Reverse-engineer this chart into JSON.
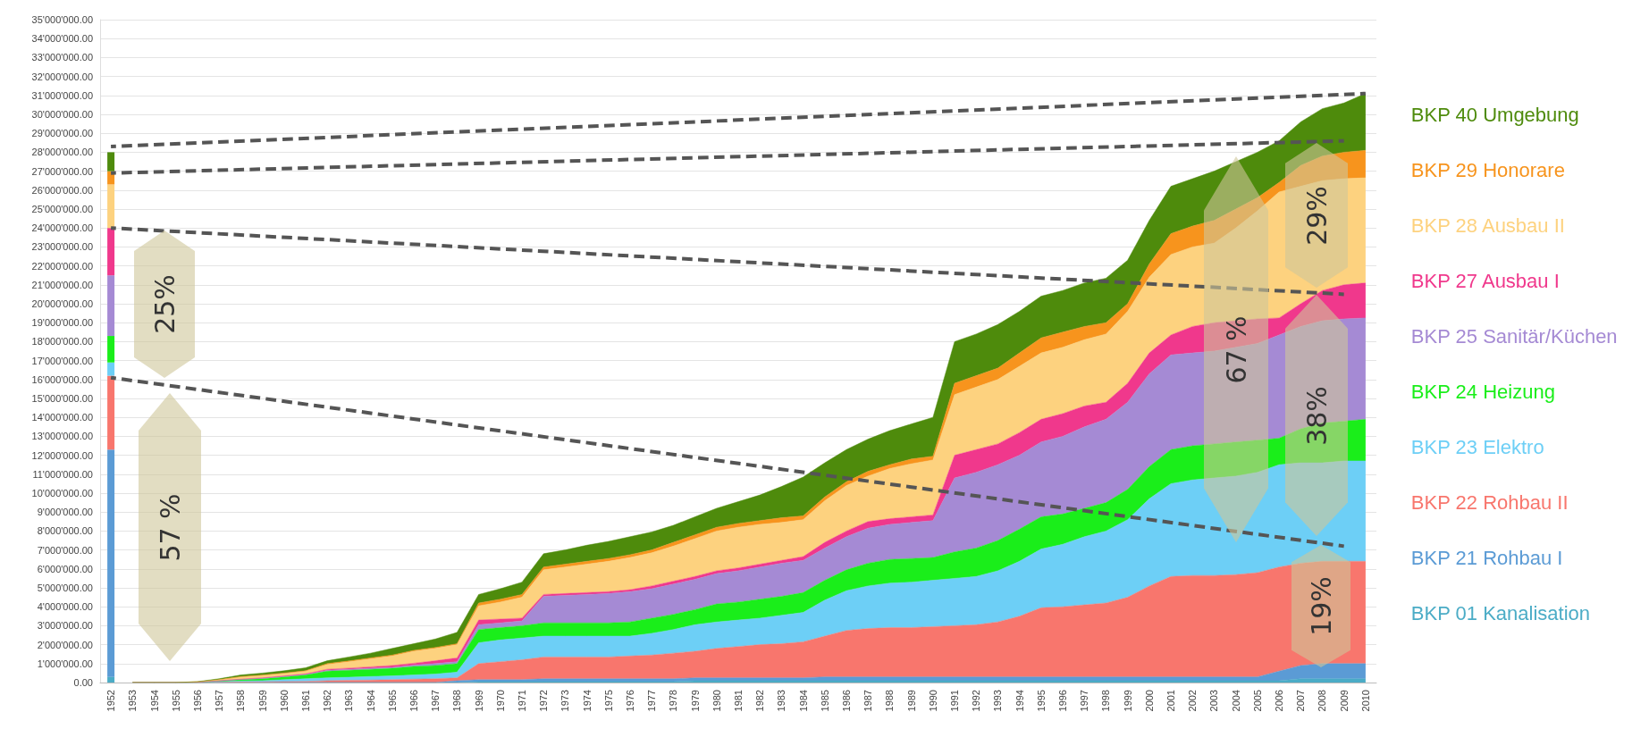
{
  "chart_data": {
    "type": "area",
    "stacked": true,
    "grid": "y",
    "legend": "right",
    "marker": "none",
    "categories": [
      "1952",
      "1953",
      "1954",
      "1955",
      "1956",
      "1957",
      "1958",
      "1959",
      "1960",
      "1961",
      "1962",
      "1963",
      "1964",
      "1965",
      "1966",
      "1967",
      "1968",
      "1969",
      "1970",
      "1971",
      "1972",
      "1973",
      "1974",
      "1975",
      "1976",
      "1977",
      "1978",
      "1979",
      "1980",
      "1981",
      "1982",
      "1983",
      "1984",
      "1985",
      "1986",
      "1987",
      "1988",
      "1989",
      "1990",
      "1991",
      "1992",
      "1993",
      "1994",
      "1995",
      "1996",
      "1997",
      "1998",
      "1999",
      "2000",
      "2001",
      "2002",
      "2003",
      "2004",
      "2005",
      "2006",
      "2007",
      "2008",
      "2009",
      "2010"
    ],
    "ylim": [
      0,
      35000000
    ],
    "yticks": [
      {
        "value": 0,
        "label": "0.00"
      },
      {
        "value": 1000000,
        "label": "1'000'000.00"
      },
      {
        "value": 2000000,
        "label": "2'000'000.00"
      },
      {
        "value": 3000000,
        "label": "3'000'000.00"
      },
      {
        "value": 4000000,
        "label": "4'000'000.00"
      },
      {
        "value": 5000000,
        "label": "5'000'000.00"
      },
      {
        "value": 6000000,
        "label": "6'000'000.00"
      },
      {
        "value": 7000000,
        "label": "7'000'000.00"
      },
      {
        "value": 8000000,
        "label": "8'000'000.00"
      },
      {
        "value": 9000000,
        "label": "9'000'000.00"
      },
      {
        "value": 10000000,
        "label": "10'000'000.00"
      },
      {
        "value": 11000000,
        "label": "11'000'000.00"
      },
      {
        "value": 12000000,
        "label": "12'000'000.00"
      },
      {
        "value": 13000000,
        "label": "13'000'000.00"
      },
      {
        "value": 14000000,
        "label": "14'000'000.00"
      },
      {
        "value": 15000000,
        "label": "15'000'000.00"
      },
      {
        "value": 16000000,
        "label": "16'000'000.00"
      },
      {
        "value": 17000000,
        "label": "17'000'000.00"
      },
      {
        "value": 18000000,
        "label": "18'000'000.00"
      },
      {
        "value": 19000000,
        "label": "19'000'000.00"
      },
      {
        "value": 20000000,
        "label": "20'000'000.00"
      },
      {
        "value": 21000000,
        "label": "21'000'000.00"
      },
      {
        "value": 22000000,
        "label": "22'000'000.00"
      },
      {
        "value": 23000000,
        "label": "23'000'000.00"
      },
      {
        "value": 24000000,
        "label": "24'000'000.00"
      },
      {
        "value": 25000000,
        "label": "25'000'000.00"
      },
      {
        "value": 26000000,
        "label": "26'000'000.00"
      },
      {
        "value": 27000000,
        "label": "27'000'000.00"
      },
      {
        "value": 28000000,
        "label": "28'000'000.00"
      },
      {
        "value": 29000000,
        "label": "29'000'000.00"
      },
      {
        "value": 30000000,
        "label": "30'000'000.00"
      },
      {
        "value": 31000000,
        "label": "31'000'000.00"
      },
      {
        "value": 32000000,
        "label": "32'000'000.00"
      },
      {
        "value": 33000000,
        "label": "33'000'000.00"
      },
      {
        "value": 34000000,
        "label": "34'000'000.00"
      },
      {
        "value": 35000000,
        "label": "35'000'000.00"
      }
    ],
    "series": [
      {
        "name": "BKP 01 Kanalisation",
        "color": "#4bacc6",
        "values": [
          null,
          0,
          0,
          0,
          0,
          0,
          0,
          0,
          0,
          0,
          0,
          0,
          0,
          0,
          0,
          0,
          0,
          50000,
          50000,
          50000,
          50000,
          50000,
          50000,
          50000,
          50000,
          50000,
          50000,
          100000,
          100000,
          100000,
          100000,
          100000,
          100000,
          100000,
          100000,
          100000,
          100000,
          100000,
          100000,
          100000,
          100000,
          100000,
          100000,
          100000,
          100000,
          100000,
          100000,
          100000,
          100000,
          100000,
          100000,
          100000,
          100000,
          100000,
          100000,
          200000,
          200000,
          200000,
          200000
        ]
      },
      {
        "name": "BKP 21 Rohbau I",
        "color": "#5b9bd5",
        "values": [
          null,
          0,
          0,
          0,
          0,
          0,
          0,
          0,
          0,
          0,
          0,
          0,
          0,
          0,
          0,
          0,
          100000,
          100000,
          100000,
          100000,
          150000,
          150000,
          150000,
          150000,
          150000,
          150000,
          150000,
          150000,
          150000,
          150000,
          150000,
          150000,
          150000,
          200000,
          200000,
          200000,
          200000,
          200000,
          200000,
          200000,
          200000,
          200000,
          200000,
          200000,
          200000,
          200000,
          200000,
          200000,
          200000,
          200000,
          200000,
          200000,
          200000,
          200000,
          500000,
          700000,
          800000,
          800000,
          800000
        ]
      },
      {
        "name": "BKP 22 Rohbau II",
        "color": "#f8766d",
        "values": [
          null,
          0,
          0,
          0,
          0,
          20000,
          30000,
          40000,
          50000,
          60000,
          100000,
          120000,
          130000,
          150000,
          180000,
          200000,
          150000,
          850000,
          950000,
          1050000,
          1150000,
          1150000,
          1150000,
          1150000,
          1200000,
          1250000,
          1350000,
          1400000,
          1550000,
          1650000,
          1750000,
          1800000,
          1900000,
          2150000,
          2450000,
          2550000,
          2600000,
          2600000,
          2650000,
          2700000,
          2750000,
          2900000,
          3200000,
          3650000,
          3700000,
          3800000,
          3900000,
          4200000,
          4800000,
          5300000,
          5350000,
          5350000,
          5400000,
          5500000,
          5500000,
          5400000,
          5400000,
          5400000,
          5400000
        ]
      },
      {
        "name": "BKP 23 Elektro",
        "color": "#6dcff6",
        "values": [
          null,
          0,
          0,
          0,
          0,
          30000,
          50000,
          60000,
          100000,
          140000,
          150000,
          160000,
          190000,
          200000,
          220000,
          250000,
          300000,
          1100000,
          1150000,
          1150000,
          1100000,
          1100000,
          1100000,
          1100000,
          1050000,
          1150000,
          1250000,
          1400000,
          1400000,
          1400000,
          1400000,
          1500000,
          1550000,
          1900000,
          2100000,
          2250000,
          2350000,
          2400000,
          2450000,
          2500000,
          2550000,
          2700000,
          2900000,
          3100000,
          3300000,
          3600000,
          3800000,
          4100000,
          4600000,
          4900000,
          5050000,
          5150000,
          5200000,
          5300000,
          5400000,
          5300000,
          5200000,
          5300000,
          5300000
        ]
      },
      {
        "name": "BKP 24 Heizung",
        "color": "#1aee1a",
        "values": [
          null,
          0,
          0,
          0,
          20000,
          30000,
          70000,
          100000,
          150000,
          200000,
          350000,
          370000,
          380000,
          400000,
          450000,
          450000,
          450000,
          700000,
          650000,
          650000,
          700000,
          700000,
          700000,
          700000,
          750000,
          800000,
          800000,
          800000,
          950000,
          950000,
          1000000,
          1000000,
          1050000,
          1050000,
          1100000,
          1200000,
          1250000,
          1250000,
          1200000,
          1400000,
          1500000,
          1600000,
          1700000,
          1700000,
          1600000,
          1500000,
          1500000,
          1600000,
          1700000,
          1800000,
          1800000,
          1800000,
          1800000,
          1700000,
          1400000,
          1800000,
          2100000,
          2100000,
          2200000
        ]
      },
      {
        "name": "BKP 25 Sanitär/Küchen",
        "color": "#a58ad4",
        "values": [
          null,
          0,
          0,
          0,
          0,
          0,
          10000,
          20000,
          20000,
          30000,
          50000,
          50000,
          50000,
          50000,
          70000,
          100000,
          100000,
          250000,
          250000,
          250000,
          1400000,
          1450000,
          1500000,
          1550000,
          1600000,
          1550000,
          1600000,
          1600000,
          1600000,
          1650000,
          1700000,
          1750000,
          1700000,
          1700000,
          1750000,
          1850000,
          1850000,
          1900000,
          1950000,
          3900000,
          4000000,
          4000000,
          3900000,
          3950000,
          4100000,
          4300000,
          4400000,
          4600000,
          4900000,
          5000000,
          4900000,
          4900000,
          5000000,
          5100000,
          5450000,
          5400000,
          5400000,
          5400000,
          5350000
        ]
      },
      {
        "name": "BKP 27 Ausbau I",
        "color": "#f0388c",
        "values": [
          null,
          0,
          0,
          0,
          0,
          20000,
          20000,
          30000,
          30000,
          30000,
          50000,
          60000,
          80000,
          100000,
          100000,
          150000,
          200000,
          250000,
          200000,
          150000,
          100000,
          100000,
          100000,
          100000,
          100000,
          150000,
          150000,
          150000,
          150000,
          150000,
          150000,
          150000,
          200000,
          300000,
          300000,
          350000,
          300000,
          300000,
          300000,
          1200000,
          1200000,
          1100000,
          1200000,
          1200000,
          1200000,
          1100000,
          900000,
          1000000,
          1100000,
          1050000,
          1400000,
          1500000,
          1400000,
          1300000,
          900000,
          1200000,
          1600000,
          1800000,
          1850000
        ]
      },
      {
        "name": "BKP 28 Ausbau II",
        "color": "#fdd27f",
        "values": [
          null,
          0,
          0,
          0,
          20000,
          50000,
          120000,
          130000,
          130000,
          140000,
          250000,
          340000,
          420000,
          500000,
          630000,
          650000,
          700000,
          750000,
          900000,
          1100000,
          1300000,
          1400000,
          1500000,
          1600000,
          1700000,
          1750000,
          1850000,
          2000000,
          2100000,
          2150000,
          2100000,
          2000000,
          1950000,
          2200000,
          2400000,
          2400000,
          2650000,
          2800000,
          2900000,
          3200000,
          3300000,
          3400000,
          3500000,
          3500000,
          3500000,
          3500000,
          3600000,
          3800000,
          4000000,
          4250000,
          4200000,
          4200000,
          4900000,
          5700000,
          6650000,
          6200000,
          5800000,
          5600000,
          5550000
        ]
      },
      {
        "name": "BKP 29 Honorare",
        "color": "#f7941d",
        "values": [
          null,
          0,
          0,
          0,
          0,
          0,
          10000,
          10000,
          20000,
          20000,
          50000,
          40000,
          50000,
          50000,
          50000,
          50000,
          50000,
          150000,
          150000,
          150000,
          150000,
          150000,
          150000,
          150000,
          150000,
          150000,
          200000,
          200000,
          200000,
          200000,
          200000,
          250000,
          200000,
          200000,
          200000,
          250000,
          200000,
          250000,
          200000,
          600000,
          600000,
          600000,
          700000,
          800000,
          800000,
          700000,
          600000,
          400000,
          700000,
          1100000,
          1100000,
          1200000,
          1000000,
          700000,
          500000,
          1100000,
          1300000,
          1400000,
          1450000
        ]
      },
      {
        "name": "BKP 40 Umgebung",
        "color": "#4e8b0c",
        "values": [
          null,
          0,
          0,
          0,
          10000,
          50000,
          90000,
          110000,
          120000,
          160000,
          150000,
          210000,
          250000,
          350000,
          350000,
          450000,
          600000,
          450000,
          550000,
          650000,
          700000,
          750000,
          850000,
          900000,
          950000,
          950000,
          900000,
          950000,
          1000000,
          1150000,
          1350000,
          1650000,
          2050000,
          1800000,
          1700000,
          1700000,
          1800000,
          1850000,
          2050000,
          2200000,
          2200000,
          2300000,
          2200000,
          2200000,
          2200000,
          2300000,
          2350000,
          2300000,
          2300000,
          2500000,
          2500000,
          2600000,
          2500000,
          2400000,
          2200000,
          2300000,
          2500000,
          2600000,
          3000000
        ]
      },
      {
        "type": "bar",
        "color": "#4bacc6",
        "values": [
          300000,
          null,
          null,
          null,
          null,
          null,
          null,
          null,
          null,
          null,
          null,
          null,
          null,
          null,
          null,
          null,
          null,
          null,
          null,
          null,
          null,
          null,
          null,
          null,
          null,
          null,
          null,
          null,
          null,
          null,
          null,
          null,
          null,
          null,
          null,
          null,
          null,
          null,
          null,
          null,
          null,
          null,
          null,
          null,
          null,
          null,
          null,
          null,
          null,
          null,
          null,
          null,
          null,
          null,
          null,
          null,
          null,
          null,
          null
        ]
      },
      {
        "type": "bar",
        "color": "#5b9bd5",
        "values": [
          12000000,
          null,
          null,
          null,
          null,
          null,
          null,
          null,
          null,
          null,
          null,
          null,
          null,
          null,
          null,
          null,
          null,
          null,
          null,
          null,
          null,
          null,
          null,
          null,
          null,
          null,
          null,
          null,
          null,
          null,
          null,
          null,
          null,
          null,
          null,
          null,
          null,
          null,
          null,
          null,
          null,
          null,
          null,
          null,
          null,
          null,
          null,
          null,
          null,
          null,
          null,
          null,
          null,
          null,
          null,
          null,
          null,
          null,
          null
        ]
      },
      {
        "type": "bar",
        "color": "#f8766d",
        "values": [
          3900000,
          null,
          null,
          null,
          null,
          null,
          null,
          null,
          null,
          null,
          null,
          null,
          null,
          null,
          null,
          null,
          null,
          null,
          null,
          null,
          null,
          null,
          null,
          null,
          null,
          null,
          null,
          null,
          null,
          null,
          null,
          null,
          null,
          null,
          null,
          null,
          null,
          null,
          null,
          null,
          null,
          null,
          null,
          null,
          null,
          null,
          null,
          null,
          null,
          null,
          null,
          null,
          null,
          null,
          null,
          null,
          null,
          null,
          null
        ]
      },
      {
        "type": "bar",
        "color": "#6dcff6",
        "values": [
          700000,
          null,
          null,
          null,
          null,
          null,
          null,
          null,
          null,
          null,
          null,
          null,
          null,
          null,
          null,
          null,
          null,
          null,
          null,
          null,
          null,
          null,
          null,
          null,
          null,
          null,
          null,
          null,
          null,
          null,
          null,
          null,
          null,
          null,
          null,
          null,
          null,
          null,
          null,
          null,
          null,
          null,
          null,
          null,
          null,
          null,
          null,
          null,
          null,
          null,
          null,
          null,
          null,
          null,
          null,
          null,
          null,
          null,
          null
        ]
      },
      {
        "type": "bar",
        "color": "#1aee1a",
        "values": [
          1400000,
          null,
          null,
          null,
          null,
          null,
          null,
          null,
          null,
          null,
          null,
          null,
          null,
          null,
          null,
          null,
          null,
          null,
          null,
          null,
          null,
          null,
          null,
          null,
          null,
          null,
          null,
          null,
          null,
          null,
          null,
          null,
          null,
          null,
          null,
          null,
          null,
          null,
          null,
          null,
          null,
          null,
          null,
          null,
          null,
          null,
          null,
          null,
          null,
          null,
          null,
          null,
          null,
          null,
          null,
          null,
          null,
          null,
          null
        ]
      },
      {
        "type": "bar",
        "color": "#a58ad4",
        "values": [
          3200000,
          null,
          null,
          null,
          null,
          null,
          null,
          null,
          null,
          null,
          null,
          null,
          null,
          null,
          null,
          null,
          null,
          null,
          null,
          null,
          null,
          null,
          null,
          null,
          null,
          null,
          null,
          null,
          null,
          null,
          null,
          null,
          null,
          null,
          null,
          null,
          null,
          null,
          null,
          null,
          null,
          null,
          null,
          null,
          null,
          null,
          null,
          null,
          null,
          null,
          null,
          null,
          null,
          null,
          null,
          null,
          null,
          null,
          null
        ]
      },
      {
        "type": "bar",
        "color": "#f0388c",
        "values": [
          2500000,
          null,
          null,
          null,
          null,
          null,
          null,
          null,
          null,
          null,
          null,
          null,
          null,
          null,
          null,
          null,
          null,
          null,
          null,
          null,
          null,
          null,
          null,
          null,
          null,
          null,
          null,
          null,
          null,
          null,
          null,
          null,
          null,
          null,
          null,
          null,
          null,
          null,
          null,
          null,
          null,
          null,
          null,
          null,
          null,
          null,
          null,
          null,
          null,
          null,
          null,
          null,
          null,
          null,
          null,
          null,
          null,
          null,
          null
        ]
      },
      {
        "type": "bar",
        "color": "#fdd27f",
        "values": [
          2300000,
          null,
          null,
          null,
          null,
          null,
          null,
          null,
          null,
          null,
          null,
          null,
          null,
          null,
          null,
          null,
          null,
          null,
          null,
          null,
          null,
          null,
          null,
          null,
          null,
          null,
          null,
          null,
          null,
          null,
          null,
          null,
          null,
          null,
          null,
          null,
          null,
          null,
          null,
          null,
          null,
          null,
          null,
          null,
          null,
          null,
          null,
          null,
          null,
          null,
          null,
          null,
          null,
          null,
          null,
          null,
          null,
          null,
          null
        ]
      },
      {
        "type": "bar",
        "color": "#f7941d",
        "values": [
          700000,
          null,
          null,
          null,
          null,
          null,
          null,
          null,
          null,
          null,
          null,
          null,
          null,
          null,
          null,
          null,
          null,
          null,
          null,
          null,
          null,
          null,
          null,
          null,
          null,
          null,
          null,
          null,
          null,
          null,
          null,
          null,
          null,
          null,
          null,
          null,
          null,
          null,
          null,
          null,
          null,
          null,
          null,
          null,
          null,
          null,
          null,
          null,
          null,
          null,
          null,
          null,
          null,
          null,
          null,
          null,
          null,
          null,
          null
        ]
      },
      {
        "type": "bar",
        "color": "#4e8b0c",
        "values": [
          1000000,
          null,
          null,
          null,
          null,
          null,
          null,
          null,
          null,
          null,
          null,
          null,
          null,
          null,
          null,
          null,
          null,
          null,
          null,
          null,
          null,
          null,
          null,
          null,
          null,
          null,
          null,
          null,
          null,
          null,
          null,
          null,
          null,
          null,
          null,
          null,
          null,
          null,
          null,
          null,
          null,
          null,
          null,
          null,
          null,
          null,
          null,
          null,
          null,
          null,
          null,
          null,
          null,
          null,
          null,
          null,
          null,
          null,
          null
        ]
      },
      {
        "type": "line",
        "color": "#555555",
        "line_style": "dashed",
        "values": [
          28300000,
          null,
          null,
          null,
          null,
          null,
          null,
          null,
          null,
          null,
          null,
          null,
          null,
          null,
          null,
          null,
          null,
          null,
          null,
          null,
          null,
          null,
          null,
          null,
          null,
          null,
          null,
          null,
          null,
          null,
          null,
          null,
          null,
          null,
          null,
          null,
          null,
          null,
          null,
          null,
          null,
          null,
          null,
          null,
          null,
          null,
          null,
          null,
          null,
          null,
          null,
          null,
          null,
          null,
          null,
          null,
          null,
          null,
          31100000
        ]
      },
      {
        "type": "line",
        "color": "#555555",
        "line_style": "dashed",
        "values": [
          26900000,
          null,
          null,
          null,
          null,
          null,
          null,
          null,
          null,
          null,
          null,
          null,
          null,
          null,
          null,
          null,
          null,
          null,
          null,
          null,
          null,
          null,
          null,
          null,
          null,
          null,
          null,
          null,
          null,
          null,
          null,
          null,
          null,
          null,
          null,
          null,
          null,
          null,
          null,
          null,
          null,
          null,
          null,
          null,
          null,
          null,
          null,
          null,
          null,
          null,
          null,
          null,
          null,
          null,
          null,
          null,
          null,
          28600000,
          null
        ]
      },
      {
        "type": "line",
        "color": "#555555",
        "line_style": "dashed",
        "values": [
          24000000,
          null,
          null,
          null,
          null,
          null,
          null,
          null,
          null,
          null,
          null,
          null,
          null,
          null,
          null,
          null,
          null,
          null,
          null,
          null,
          null,
          null,
          null,
          null,
          null,
          null,
          null,
          null,
          null,
          null,
          null,
          null,
          null,
          null,
          null,
          null,
          null,
          null,
          null,
          null,
          null,
          null,
          null,
          null,
          null,
          null,
          null,
          null,
          null,
          null,
          null,
          null,
          null,
          null,
          null,
          null,
          null,
          20500000,
          null
        ]
      },
      {
        "type": "line",
        "color": "#555555",
        "line_style": "dashed",
        "values": [
          16100000,
          null,
          null,
          null,
          null,
          null,
          null,
          null,
          null,
          null,
          null,
          null,
          null,
          null,
          null,
          null,
          null,
          null,
          null,
          null,
          null,
          null,
          null,
          null,
          null,
          null,
          null,
          null,
          null,
          null,
          null,
          null,
          null,
          null,
          null,
          null,
          null,
          null,
          null,
          null,
          null,
          null,
          null,
          null,
          null,
          null,
          null,
          null,
          null,
          null,
          null,
          null,
          null,
          null,
          null,
          null,
          null,
          7200000,
          null
        ]
      }
    ],
    "annotations": [
      "25%",
      "57 %",
      "67 %",
      "29%",
      "38%",
      "19%"
    ]
  }
}
